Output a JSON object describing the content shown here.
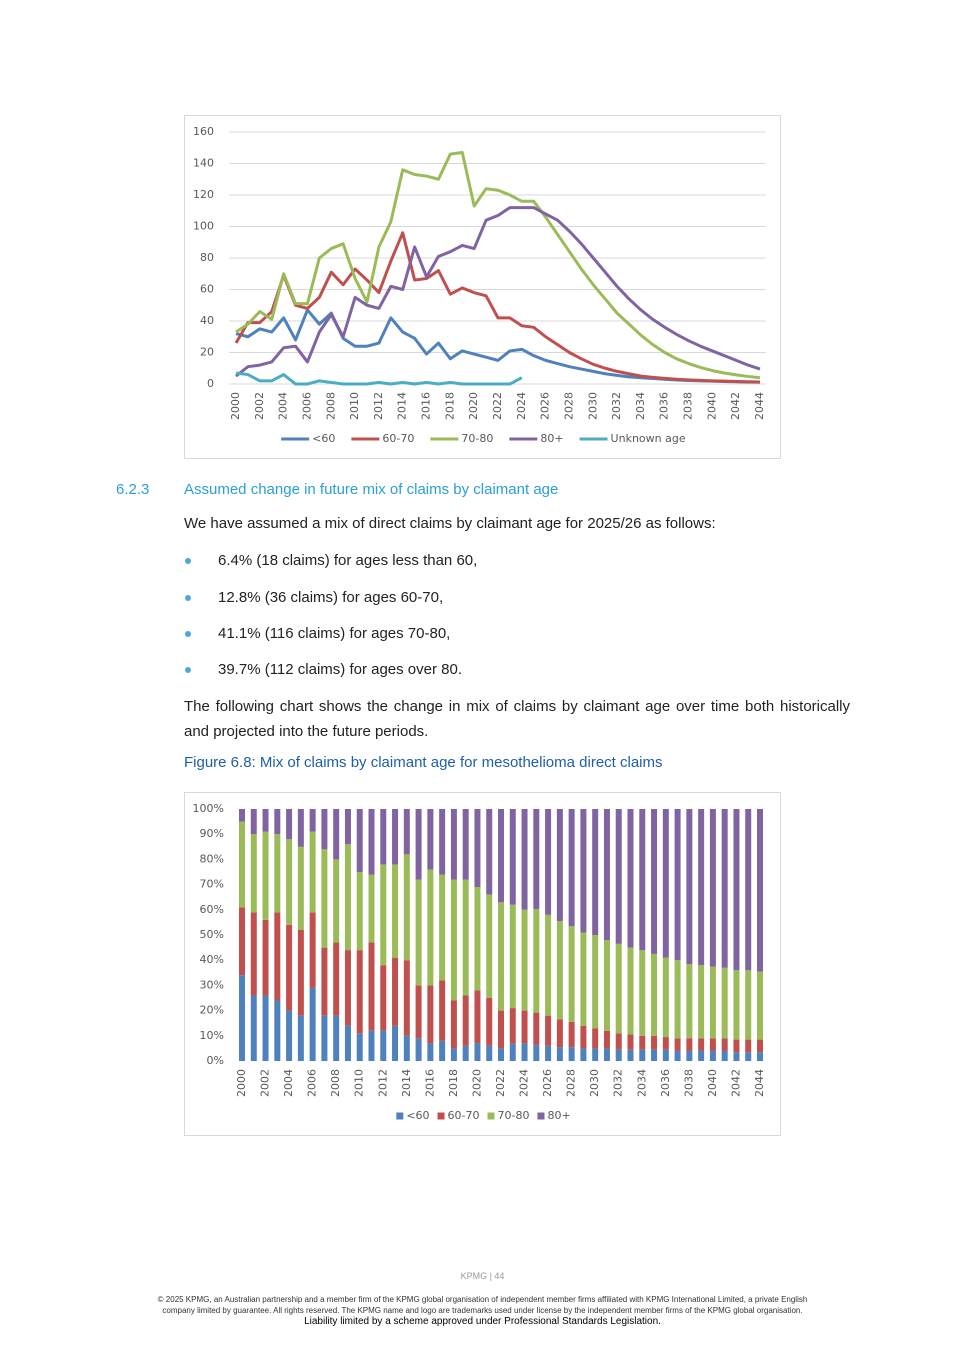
{
  "chart_data": [
    {
      "type": "line",
      "categories": [
        "2000",
        null,
        "2002",
        null,
        "2004",
        null,
        "2006",
        null,
        "2008",
        null,
        "2010",
        null,
        "2012",
        null,
        "2014",
        null,
        "2016",
        null,
        "2018",
        null,
        "2020",
        null,
        "2022",
        null,
        "2024",
        null,
        "2026",
        null,
        "2028",
        null,
        "2030",
        null,
        "2032",
        null,
        "2034",
        null,
        "2036",
        null,
        "2038",
        null,
        "2040",
        null,
        "2042",
        null,
        "2044"
      ],
      "series": [
        {
          "name": "<60",
          "color": "#4f81bd",
          "values": [
            32,
            30,
            35,
            33,
            42,
            28,
            47,
            38,
            45,
            29,
            24,
            24,
            26,
            42,
            33,
            29,
            19,
            26,
            16,
            21,
            19,
            17,
            15,
            21,
            22,
            18,
            15,
            13,
            11,
            9.5,
            8,
            6.5,
            5.5,
            4.5,
            4,
            3.5,
            3,
            2.5,
            2.2,
            2,
            1.8,
            1.6,
            1.4,
            1.3,
            1.2
          ]
        },
        {
          "name": "60-70",
          "color": "#c0504d",
          "values": [
            26,
            39,
            39,
            46,
            69,
            50,
            48,
            55,
            71,
            63,
            73,
            66,
            58,
            78,
            96,
            66,
            67,
            72,
            57,
            61,
            58,
            56,
            42,
            42,
            37,
            36,
            30,
            25,
            20,
            16,
            12.5,
            10,
            8,
            6.5,
            5,
            4.2,
            3.6,
            3,
            2.6,
            2.3,
            2,
            1.8,
            1.6,
            1.4,
            1.3
          ]
        },
        {
          "name": "70-80",
          "color": "#9bbb59",
          "values": [
            33,
            38,
            46,
            41,
            70,
            51,
            51,
            80,
            86,
            89,
            67,
            52,
            87,
            103,
            136,
            133,
            132,
            130,
            146,
            147,
            113,
            124,
            123,
            120,
            116,
            116,
            106,
            95,
            84,
            73,
            63,
            54,
            45,
            38,
            31,
            25,
            20,
            16,
            13,
            10.5,
            8.5,
            7,
            5.8,
            4.8,
            4
          ]
        },
        {
          "name": "80+",
          "color": "#8064a2",
          "values": [
            5,
            11,
            12,
            14,
            23,
            24,
            14,
            33,
            44,
            30,
            55,
            50,
            48,
            62,
            60,
            87,
            68,
            81,
            84,
            88,
            86,
            104,
            107,
            112,
            112,
            112,
            108,
            104,
            97,
            89,
            80,
            71,
            62,
            54,
            47,
            41,
            36,
            31.5,
            27.5,
            24,
            21,
            18,
            15,
            12,
            9.5
          ]
        },
        {
          "name": "Unknown age",
          "color": "#4bacc6",
          "values": [
            7,
            6,
            2,
            2,
            6,
            0,
            0,
            2,
            1,
            0,
            0,
            0,
            1,
            0,
            1,
            0,
            1,
            0,
            1,
            0,
            0,
            0,
            0,
            0,
            4,
            null,
            null,
            null,
            null,
            null,
            null,
            null,
            null,
            null,
            null,
            null,
            null,
            null,
            null,
            null,
            null,
            null,
            null,
            null,
            null
          ]
        }
      ],
      "ylim": [
        0,
        160
      ],
      "yticks": [
        0,
        20,
        40,
        60,
        80,
        100,
        120,
        140,
        160
      ],
      "grid": true,
      "legend": "bottom"
    },
    {
      "type": "bar",
      "stacked": true,
      "categories": [
        "2000",
        null,
        "2002",
        null,
        "2004",
        null,
        "2006",
        null,
        "2008",
        null,
        "2010",
        null,
        "2012",
        null,
        "2014",
        null,
        "2016",
        null,
        "2018",
        null,
        "2020",
        null,
        "2022",
        null,
        "2024",
        null,
        "2026",
        null,
        "2028",
        null,
        "2030",
        null,
        "2032",
        null,
        "2034",
        null,
        "2036",
        null,
        "2038",
        null,
        "2040",
        null,
        "2042",
        null,
        "2044"
      ],
      "series": [
        {
          "name": "<60",
          "color": "#4f81bd",
          "values": [
            34,
            26,
            26,
            24,
            20,
            18,
            29,
            18,
            18,
            14,
            11,
            12,
            12,
            14,
            10,
            9,
            7,
            8,
            5,
            6,
            7,
            6,
            5,
            7,
            7,
            6.4,
            6,
            5.5,
            5.5,
            5,
            5,
            5,
            4.5,
            4.5,
            4.5,
            4.5,
            4.5,
            4,
            4,
            4,
            4,
            4,
            3.5,
            3.5,
            3.5
          ]
        },
        {
          "name": "60-70",
          "color": "#c0504d",
          "values": [
            27,
            33,
            30,
            35,
            34,
            34,
            30,
            27,
            29,
            30,
            33,
            35,
            26,
            27,
            30,
            21,
            23,
            24,
            19,
            20,
            21,
            19,
            15,
            14,
            13,
            12.8,
            12,
            11,
            10,
            9,
            8,
            7,
            6.5,
            6,
            5.5,
            5.5,
            5,
            5,
            5,
            5,
            5,
            5,
            5,
            5,
            5
          ]
        },
        {
          "name": "70-80",
          "color": "#9bbb59",
          "values": [
            34,
            31,
            35,
            31,
            34,
            33,
            32,
            39,
            33,
            42,
            31,
            27,
            40,
            37,
            42,
            42,
            46,
            42,
            48,
            46,
            41,
            41,
            43,
            41,
            40,
            41.1,
            40,
            39,
            38,
            37,
            37,
            36,
            35.5,
            34.5,
            34,
            32.5,
            31.5,
            31,
            29.5,
            29,
            28.5,
            28,
            27.5,
            27.5,
            27
          ]
        },
        {
          "name": "80+",
          "color": "#8064a2",
          "values": [
            5,
            10,
            9,
            10,
            12,
            15,
            9,
            16,
            20,
            14,
            25,
            26,
            22,
            22,
            18,
            28,
            24,
            26,
            28,
            28,
            31,
            34,
            37,
            38,
            40,
            39.7,
            42,
            44.5,
            46.5,
            49,
            50,
            52,
            53.5,
            55,
            56,
            57.5,
            59,
            60,
            61.5,
            62,
            62.5,
            63,
            64,
            64,
            64.5
          ]
        }
      ],
      "ylim": [
        0,
        100
      ],
      "yticks": [
        {
          "value": 0,
          "label": "0%"
        },
        {
          "value": 10,
          "label": "10%"
        },
        {
          "value": 20,
          "label": "20%"
        },
        {
          "value": 30,
          "label": "30%"
        },
        {
          "value": 40,
          "label": "40%"
        },
        {
          "value": 50,
          "label": "50%"
        },
        {
          "value": 60,
          "label": "60%"
        },
        {
          "value": 70,
          "label": "70%"
        },
        {
          "value": 80,
          "label": "80%"
        },
        {
          "value": 90,
          "label": "90%"
        },
        {
          "value": 100,
          "label": "100%"
        }
      ],
      "grid": false,
      "legend": "bottom"
    }
  ],
  "section": {
    "number": "6.2.3",
    "heading": "Assumed change in future mix of claims by claimant age",
    "intro": "We have assumed a mix of direct claims by claimant age for 2025/26 as follows:",
    "bullets": [
      "6.4% (18 claims) for ages less than 60,",
      "12.8% (36 claims) for ages 60-70,",
      "41.1% (116 claims) for ages 70-80,",
      "39.7% (112 claims) for ages over 80."
    ],
    "paragraph": "The following chart shows the change in mix of claims by claimant age over time both historically and projected into the future periods.",
    "figure_caption": "Figure 6.8: Mix of claims by claimant age for mesothelioma direct claims"
  },
  "footer": {
    "page": "KPMG | 44",
    "copyright": [
      "© 2025 KPMG, an Australian partnership and a member firm of the KPMG global organisation of independent member firms affiliated with KPMG International Limited, a private English",
      "company limited by guarantee. All rights reserved. The KPMG name and logo are trademarks used under license by the independent member  firms of the KPMG global organisation."
    ],
    "liability": "Liability limited by a scheme approved under Professional Standards Legislation."
  }
}
